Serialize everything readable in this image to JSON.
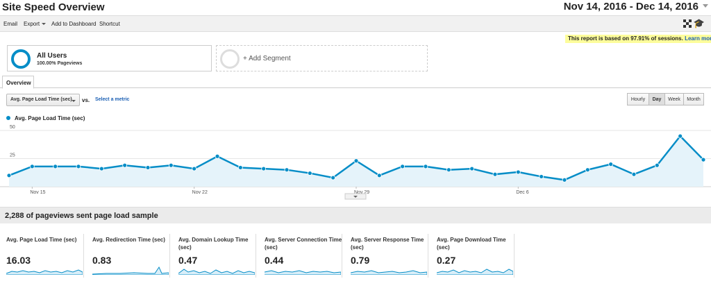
{
  "header": {
    "title": "Site Speed Overview",
    "date_range": "Nov 14, 2016 - Dec 14, 2016"
  },
  "toolbar": {
    "email": "Email",
    "export": "Export",
    "add_to_dashboard": "Add to Dashboard",
    "shortcut": "Shortcut"
  },
  "notice": {
    "text": "This report is based on 97.91% of sessions.",
    "link": "Learn more"
  },
  "segments": {
    "all_users": "All Users",
    "all_users_sub": "100.00% Pageviews",
    "add_segment": "+ Add Segment"
  },
  "tabs": {
    "overview": "Overview"
  },
  "controls": {
    "metric": "Avg. Page Load Time (sec)",
    "vs": "vs.",
    "select_metric": "Select a metric",
    "periods": [
      "Hourly",
      "Day",
      "Week",
      "Month"
    ],
    "active_period": "Day"
  },
  "chart_data": {
    "type": "area",
    "title": "",
    "legend": "Avg. Page Load Time (sec)",
    "color": "#058dc7",
    "ylim": [
      0,
      50
    ],
    "yticks": [
      "50",
      "25"
    ],
    "xtick_labels": [
      "Nov 15",
      "Nov 22",
      "Nov 29",
      "Dec 6"
    ],
    "xtick_day_index": [
      1,
      8,
      15,
      22
    ],
    "series": [
      {
        "name": "Avg. Page Load Time (sec)",
        "values": [
          10,
          18,
          18,
          18,
          16,
          19,
          17,
          19,
          16,
          27,
          17,
          16,
          15,
          12,
          8,
          23,
          10,
          18,
          18,
          15,
          16,
          11,
          13,
          9,
          6,
          15,
          20,
          11,
          19,
          45,
          24
        ]
      }
    ]
  },
  "sample": {
    "text": "2,288 of pageviews sent page load sample"
  },
  "metrics": [
    {
      "label": "Avg. Page Load Time (sec)",
      "value": "16.03"
    },
    {
      "label": "Avg. Redirection Time (sec)",
      "value": "0.83"
    },
    {
      "label": "Avg. Domain Lookup Time (sec)",
      "value": "0.47"
    },
    {
      "label": "Avg. Server Connection Time (sec)",
      "value": "0.44"
    },
    {
      "label": "Avg. Server Response Time (sec)",
      "value": "0.79"
    },
    {
      "label": "Avg. Page Download Time (sec)",
      "value": "0.27"
    }
  ]
}
